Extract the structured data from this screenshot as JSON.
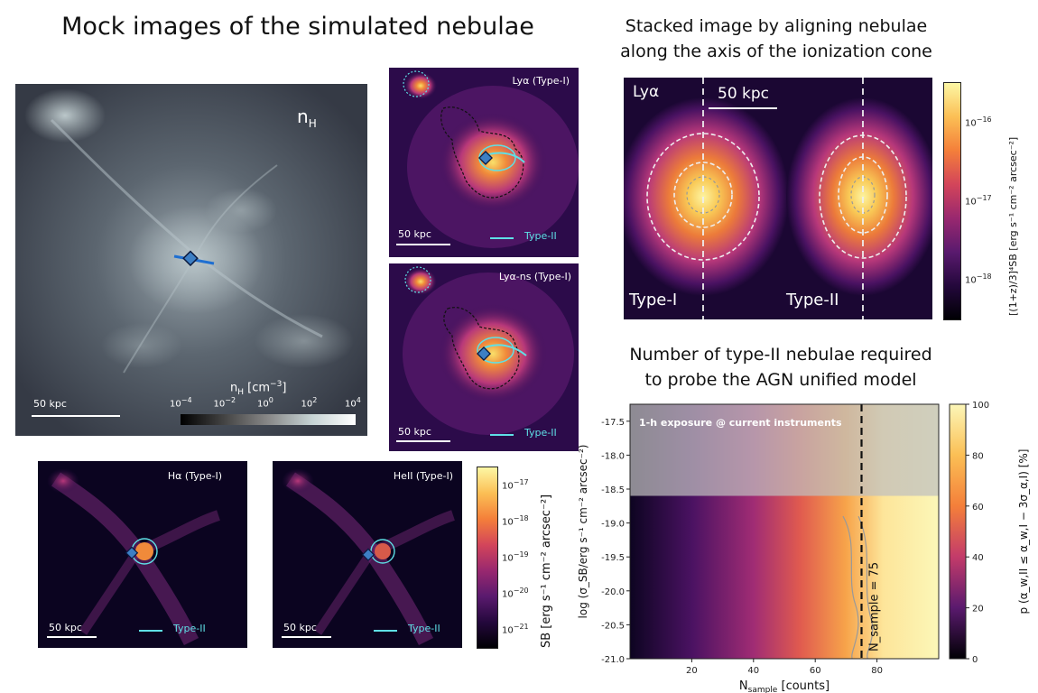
{
  "left_title": "Mock images of the simulated nebulae",
  "nh_panel": {
    "label": "n",
    "label_sub": "H",
    "scale": "50 kpc",
    "cbar_label": "n",
    "cbar_label_sub": "H",
    "cbar_label_unit": " [cm",
    "cbar_label_exp": "−3",
    "cbar_label_end": "]",
    "cbar_ticks": [
      {
        "base": "10",
        "exp": "−4"
      },
      {
        "base": "10",
        "exp": "−2"
      },
      {
        "base": "10",
        "exp": "0"
      },
      {
        "base": "10",
        "exp": "2"
      },
      {
        "base": "10",
        "exp": "4"
      }
    ]
  },
  "lya_panel": {
    "label": "Lyα (Type-I)",
    "scale": "50 kpc",
    "legend": "Type-II"
  },
  "lyans_panel": {
    "label": "Lyα-ns (Type-I)",
    "scale": "50 kpc",
    "legend": "Type-II"
  },
  "ha_panel": {
    "label": "Hα (Type-I)",
    "scale": "50 kpc",
    "legend": "Type-II"
  },
  "heii_panel": {
    "label": "HeII (Type-I)",
    "scale": "50 kpc",
    "legend": "Type-II"
  },
  "sb_cbar": {
    "label": "SB [erg s⁻¹ cm⁻² arcsec⁻²]",
    "ticks": [
      {
        "base": "10",
        "exp": "−17"
      },
      {
        "base": "10",
        "exp": "−18"
      },
      {
        "base": "10",
        "exp": "−19"
      },
      {
        "base": "10",
        "exp": "−20"
      },
      {
        "base": "10",
        "exp": "−21"
      }
    ]
  },
  "stack_title_1": "Stacked image by aligning nebulae",
  "stack_title_2": "along the axis of the ionization cone",
  "stack_panel": {
    "label": "Lyα",
    "scale": "50 kpc",
    "type1": "Type-I",
    "type2": "Type-II"
  },
  "stack_cbar": {
    "label": "[(1+z)/3]⁴SB [erg s⁻¹ cm⁻² arcsec⁻²]",
    "ticks": [
      {
        "base": "10",
        "exp": "−16"
      },
      {
        "base": "10",
        "exp": "−17"
      },
      {
        "base": "10",
        "exp": "−18"
      }
    ]
  },
  "num_title_1": "Number of type-II nebulae required",
  "num_title_2": "to probe the AGN unified model",
  "chart_data": {
    "type": "heatmap",
    "title": "",
    "annotation": "1-h exposure @ current instruments",
    "vline_label": "N_sample = 75",
    "vline_x": 75,
    "xlabel": "N",
    "xlabel_sub": "sample",
    "xlabel_unit": " [counts]",
    "ylabel": "log (σ_SB/erg s⁻¹ cm⁻² arcsec⁻²)",
    "xlim": [
      0,
      100
    ],
    "ylim": [
      -21.0,
      -17.25
    ],
    "x_ticks": [
      "20",
      "40",
      "60",
      "80"
    ],
    "x_tick_values": [
      20,
      40,
      60,
      80
    ],
    "y_ticks": [
      "-17.5",
      "-18.0",
      "-18.5",
      "-19.0",
      "-19.5",
      "-20.0",
      "-20.5",
      "-21.0"
    ],
    "y_tick_values": [
      -17.5,
      -18.0,
      -18.5,
      -19.0,
      -19.5,
      -20.0,
      -20.5,
      -21.0
    ],
    "shaded_region_ylim": [
      -18.6,
      -17.25
    ],
    "colorbar_label": "p (α_w,II ≤ α_w,I − 3σ_α,I) [%]",
    "colorbar_ticks": [
      "100",
      "80",
      "60",
      "40",
      "20",
      "0"
    ],
    "colorbar_range": [
      0,
      100
    ]
  }
}
